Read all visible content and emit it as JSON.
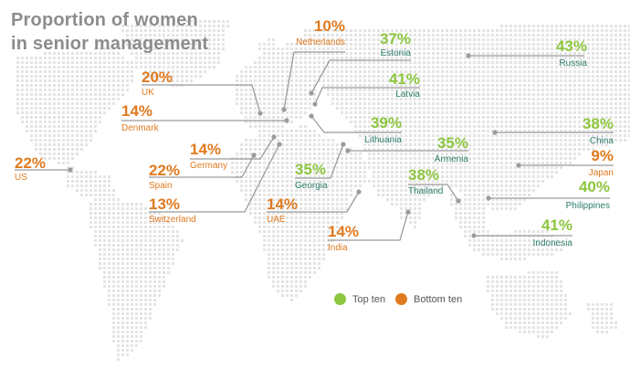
{
  "title_lines": [
    "Proportion of women",
    "in senior management"
  ],
  "legend": {
    "top": {
      "label": "Top ten",
      "color": "#8dc63f"
    },
    "bottom": {
      "label": "Bottom ten",
      "color": "#e07a1f"
    }
  },
  "colors": {
    "top_pct": "#8dc63f",
    "top_name": "#2e7d6b",
    "bottom": "#e07a1f",
    "leader": "#9b9b9b",
    "map_dot": "#e4e4e4"
  },
  "chart_data": {
    "type": "annotated-map",
    "title": "Proportion of women in senior management",
    "unit": "%",
    "countries": [
      {
        "name": "Russia",
        "value": 43,
        "group": "top"
      },
      {
        "name": "Estonia",
        "value": 37,
        "group": "top"
      },
      {
        "name": "Latvia",
        "value": 41,
        "group": "top"
      },
      {
        "name": "Lithuania",
        "value": 39,
        "group": "top"
      },
      {
        "name": "Armenia",
        "value": 35,
        "group": "top"
      },
      {
        "name": "Georgia",
        "value": 35,
        "group": "top"
      },
      {
        "name": "Thailand",
        "value": 38,
        "group": "top"
      },
      {
        "name": "China",
        "value": 38,
        "group": "top"
      },
      {
        "name": "Philippines",
        "value": 40,
        "group": "top"
      },
      {
        "name": "Indonesia",
        "value": 41,
        "group": "top"
      },
      {
        "name": "Netherlands",
        "value": 10,
        "group": "bottom"
      },
      {
        "name": "UK",
        "value": 20,
        "group": "bottom"
      },
      {
        "name": "Denmark",
        "value": 14,
        "group": "bottom"
      },
      {
        "name": "Germany",
        "value": 14,
        "group": "bottom"
      },
      {
        "name": "Spain",
        "value": 22,
        "group": "bottom"
      },
      {
        "name": "Switzerland",
        "value": 13,
        "group": "bottom"
      },
      {
        "name": "US",
        "value": 22,
        "group": "bottom"
      },
      {
        "name": "UAE",
        "value": 14,
        "group": "bottom"
      },
      {
        "name": "India",
        "value": 14,
        "group": "bottom"
      },
      {
        "name": "Japan",
        "value": 9,
        "group": "bottom"
      }
    ]
  }
}
